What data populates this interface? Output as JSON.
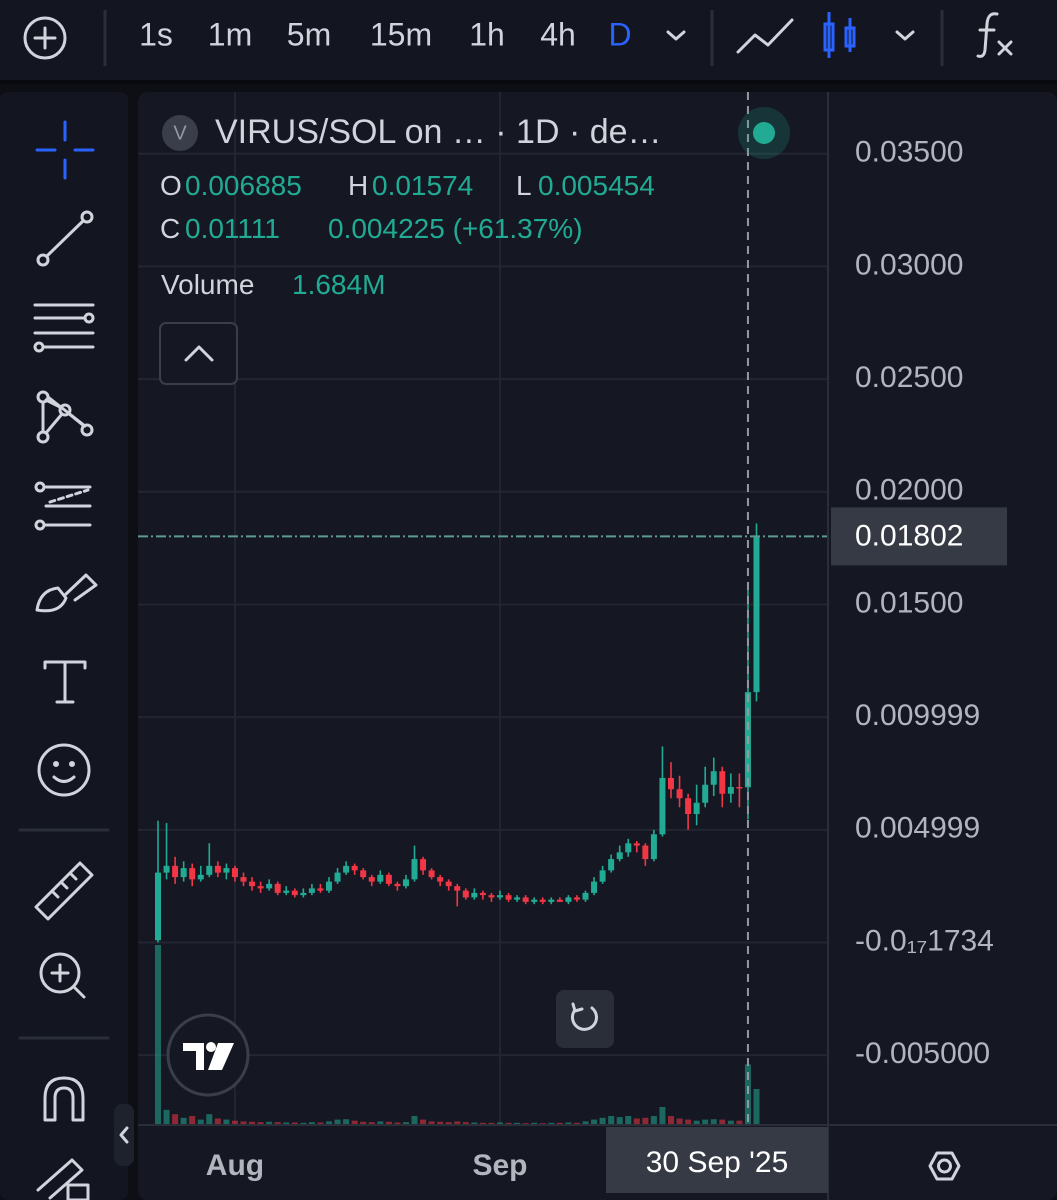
{
  "toolbar": {
    "intervals": [
      "1s",
      "1m",
      "5m",
      "15m",
      "1h",
      "4h",
      "D"
    ],
    "active_interval": "D"
  },
  "legend": {
    "symbol_letter": "V",
    "title": "VIRUS/SOL on … · 1D · de…",
    "open_label": "O",
    "high_label": "H",
    "low_label": "L",
    "close_label": "C",
    "change": "0.004225 (+61.37%)",
    "volume_label": "Volume",
    "volume_value": "1.684M"
  },
  "chart_data": {
    "type": "candlestick",
    "categories": [
      null,
      null,
      null,
      null,
      null,
      null,
      null,
      null,
      null,
      "Aug",
      null,
      null,
      null,
      null,
      null,
      null,
      null,
      null,
      null,
      null,
      null,
      null,
      null,
      null,
      null,
      null,
      null,
      null,
      null,
      null,
      null,
      null,
      null,
      null,
      null,
      null,
      null,
      null,
      null,
      null,
      "Sep",
      null,
      null,
      null,
      null,
      null,
      null,
      null,
      null,
      null,
      null,
      null,
      null,
      null,
      null,
      null,
      null,
      null,
      null,
      null,
      null,
      null,
      null,
      null,
      null,
      null,
      null,
      null,
      null,
      "30 Sep '25",
      null
    ],
    "crosshair": "30 Sep '25",
    "open": [
      0.0001,
      0.0031,
      0.0034,
      0.0029,
      0.0033,
      0.0028,
      0.003,
      0.0034,
      0.0031,
      0.0033,
      0.0029,
      0.0027,
      0.0025,
      0.0024,
      0.0026,
      0.0022,
      0.0023,
      0.0021,
      0.0022,
      0.0024,
      0.0023,
      0.0027,
      0.0031,
      0.0034,
      0.0032,
      0.0029,
      0.0027,
      0.003,
      0.0026,
      0.0025,
      0.0028,
      0.0037,
      0.0032,
      0.0029,
      0.0027,
      0.0025,
      0.0023,
      0.002,
      0.0022,
      0.0021,
      0.002,
      0.0021,
      0.0019,
      0.002,
      0.0018,
      0.0019,
      0.0018,
      0.0019,
      0.0018,
      0.002,
      0.0019,
      0.0022,
      0.0027,
      0.0032,
      0.0037,
      0.004,
      0.0044,
      0.0043,
      0.0037,
      0.0048,
      0.0073,
      0.0068,
      0.0064,
      0.0057,
      0.0062,
      0.007,
      0.0076,
      0.0066,
      0.0069,
      0.006885,
      0.01111
    ],
    "high": [
      0.0054,
      0.0053,
      0.0038,
      0.0036,
      0.0035,
      0.0034,
      0.0044,
      0.0036,
      0.0035,
      0.0034,
      0.0031,
      0.0029,
      0.0027,
      0.0028,
      0.0027,
      0.0025,
      0.0024,
      0.0024,
      0.0026,
      0.0026,
      0.0029,
      0.0033,
      0.0036,
      0.0035,
      0.0033,
      0.003,
      0.0032,
      0.0031,
      0.0027,
      0.003,
      0.0043,
      0.0038,
      0.0033,
      0.003,
      0.0028,
      0.0026,
      0.0024,
      0.0024,
      0.0023,
      0.0022,
      0.0023,
      0.0022,
      0.0021,
      0.0021,
      0.002,
      0.002,
      0.002,
      0.002,
      0.0021,
      0.0021,
      0.0023,
      0.0029,
      0.0034,
      0.0039,
      0.0043,
      0.0046,
      0.0045,
      0.0044,
      0.005,
      0.0087,
      0.008,
      0.0074,
      0.0066,
      0.007,
      0.0078,
      0.0082,
      0.0078,
      0.0075,
      0.0075,
      0.01574,
      0.0186
    ],
    "low": [
      0.0,
      0.0028,
      0.0026,
      0.0027,
      0.0025,
      0.0027,
      0.0029,
      0.0029,
      0.0028,
      0.0027,
      0.0025,
      0.0023,
      0.0022,
      0.0023,
      0.0021,
      0.0021,
      0.002,
      0.002,
      0.0021,
      0.0022,
      0.0022,
      0.0026,
      0.003,
      0.003,
      0.0028,
      0.0025,
      0.0026,
      0.0025,
      0.0023,
      0.0024,
      0.0027,
      0.003,
      0.0028,
      0.0025,
      0.0023,
      0.0016,
      0.0019,
      0.0019,
      0.0019,
      0.0018,
      0.0019,
      0.0018,
      0.0018,
      0.0017,
      0.0017,
      0.0017,
      0.0017,
      0.0018,
      0.0017,
      0.0018,
      0.0018,
      0.0021,
      0.0026,
      0.0031,
      0.0036,
      0.0038,
      0.004,
      0.0034,
      0.0036,
      0.0047,
      0.0064,
      0.006,
      0.005,
      0.0052,
      0.006,
      0.0065,
      0.006,
      0.0062,
      0.006,
      0.005454,
      0.0107
    ],
    "close": [
      0.0031,
      0.0034,
      0.0029,
      0.0033,
      0.0028,
      0.003,
      0.0034,
      0.0031,
      0.0033,
      0.0029,
      0.0027,
      0.0025,
      0.0024,
      0.0026,
      0.0022,
      0.0023,
      0.0021,
      0.0022,
      0.0024,
      0.0023,
      0.0027,
      0.0031,
      0.0034,
      0.0032,
      0.0029,
      0.0027,
      0.003,
      0.0026,
      0.0025,
      0.0028,
      0.0037,
      0.0032,
      0.0029,
      0.0027,
      0.0025,
      0.0023,
      0.002,
      0.0022,
      0.0021,
      0.002,
      0.0021,
      0.0019,
      0.002,
      0.0018,
      0.0019,
      0.0018,
      0.0019,
      0.0018,
      0.002,
      0.0019,
      0.0022,
      0.0027,
      0.0032,
      0.0037,
      0.004,
      0.0044,
      0.0043,
      0.0037,
      0.0048,
      0.0073,
      0.0068,
      0.0064,
      0.0057,
      0.0062,
      0.007,
      0.0076,
      0.0066,
      0.0069,
      0.006885,
      0.01111,
      0.01802
    ],
    "volume": [
      5000000,
      420000,
      300000,
      200000,
      250000,
      150000,
      300000,
      180000,
      150000,
      120000,
      100000,
      90000,
      80000,
      90000,
      80000,
      70000,
      70000,
      60000,
      80000,
      70000,
      100000,
      150000,
      160000,
      120000,
      90000,
      80000,
      100000,
      90000,
      70000,
      80000,
      250000,
      150000,
      100000,
      90000,
      80000,
      100000,
      80000,
      70000,
      60000,
      60000,
      70000,
      60000,
      60000,
      50000,
      60000,
      50000,
      60000,
      60000,
      70000,
      60000,
      100000,
      150000,
      200000,
      250000,
      220000,
      250000,
      180000,
      200000,
      250000,
      500000,
      250000,
      180000,
      150000,
      120000,
      150000,
      160000,
      150000,
      120000,
      120000,
      1684000,
      1000000
    ],
    "up_color": "#22ab94",
    "down_color": "#f23645",
    "ylim": [
      -0.0081,
      0.03774
    ],
    "yticks": [
      {
        "value": 0.035,
        "label": "0.03500"
      },
      {
        "value": 0.03,
        "label": "0.03000"
      },
      {
        "value": 0.025,
        "label": "0.02500"
      },
      {
        "value": 0.02,
        "label": "0.02000"
      },
      {
        "value": 0.015,
        "label": "0.01500"
      },
      0.009999,
      0.004999,
      {
        "value": -1.734e-18,
        "label": "-0.0₁₇1734"
      },
      {
        "value": -0.005,
        "label": "-0.005000"
      }
    ],
    "last_price": 0.01802,
    "grid": true
  }
}
